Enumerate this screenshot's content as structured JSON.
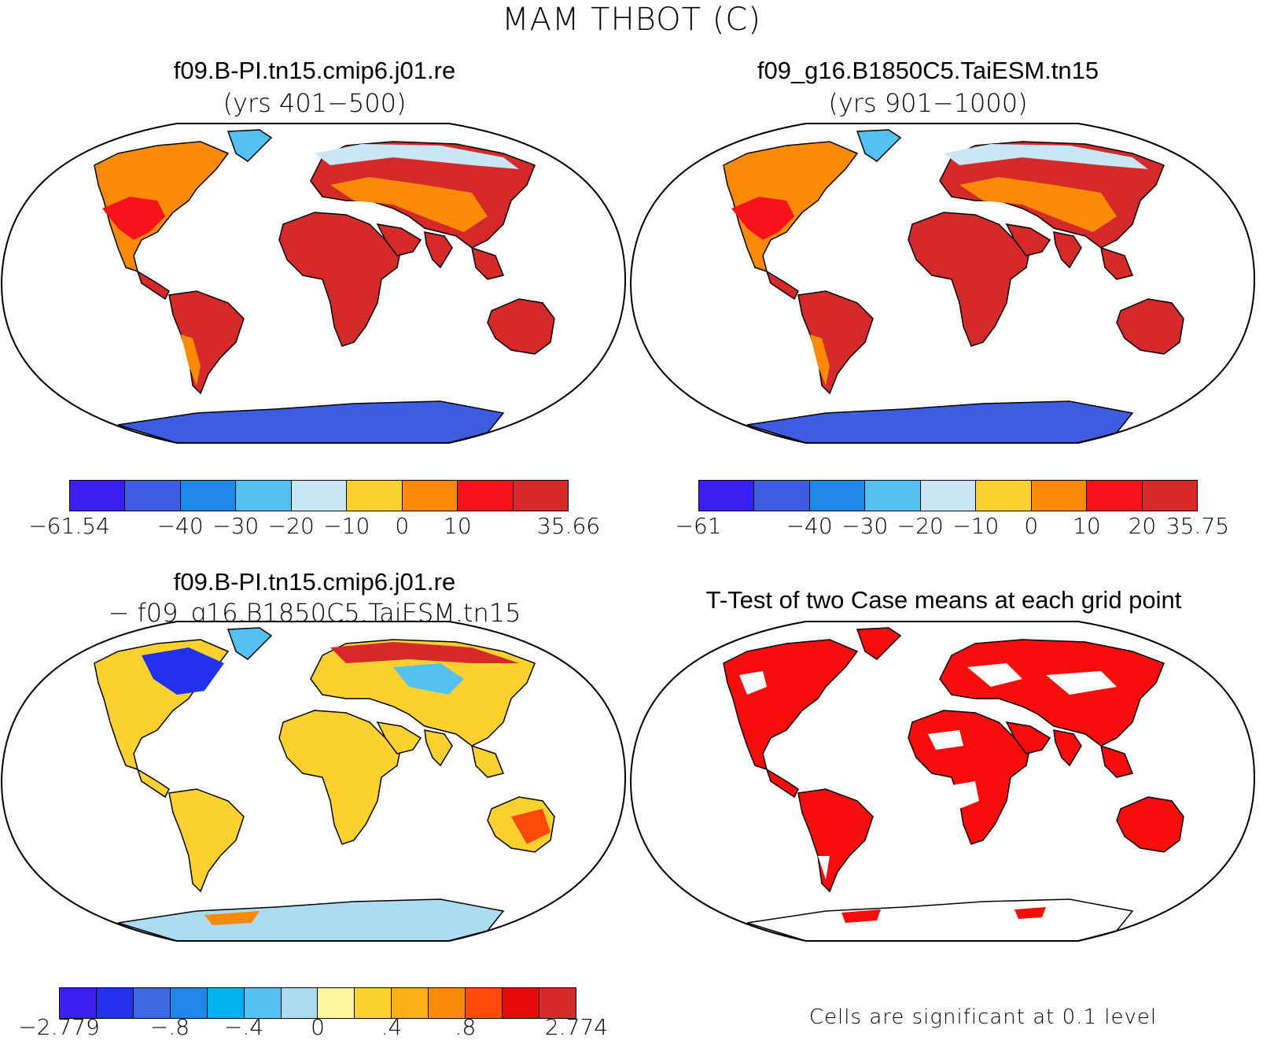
{
  "main_title": "MAM THBOT (C)",
  "panels": [
    {
      "id": "case1",
      "title": "f09.B-PI.tn15.cmip6.j01.re",
      "subtitle": "(yrs 401−500)",
      "colorbar": {
        "colors": [
          "#3b1ff2",
          "#3d5ce0",
          "#1e88e8",
          "#55c1f2",
          "#c8e6f6",
          "#fdd12f",
          "#fc8a06",
          "#f8121a",
          "#d42a2a"
        ],
        "tick_labels": [
          "−61.54",
          "−40",
          "−30",
          "−20",
          "−10",
          "0",
          "10",
          "35.66"
        ]
      }
    },
    {
      "id": "case2",
      "title": "f09_g16.B1850C5.TaiESM.tn15",
      "subtitle": "(yrs 901−1000)",
      "colorbar": {
        "colors": [
          "#3b1ff2",
          "#3d5ce0",
          "#1e88e8",
          "#55c1f2",
          "#c8e6f6",
          "#fdd12f",
          "#fc8a06",
          "#f8121a",
          "#d42a2a"
        ],
        "tick_labels": [
          "−61",
          "−40",
          "−30",
          "−20",
          "−10",
          "0",
          "10",
          "20",
          "35.75"
        ]
      }
    },
    {
      "id": "difference",
      "title": "f09.B-PI.tn15.cmip6.j01.re",
      "subtitle": "− f09_g16.B1850C5.TaiESM.tn15",
      "colorbar": {
        "colors": [
          "#3b1ff2",
          "#2232ec",
          "#3d6ae4",
          "#1e88e8",
          "#05b0f0",
          "#55c1f2",
          "#acdcf2",
          "#fdf6a0",
          "#fdd12f",
          "#fcb015",
          "#fc8a06",
          "#fc4a0a",
          "#e60a0a",
          "#d42a2a"
        ],
        "tick_labels": [
          "−2.779",
          "−.8",
          "−.4",
          "0",
          ".4",
          ".8",
          "2.774"
        ]
      }
    },
    {
      "id": "ttest",
      "title": "T-Test of two Case means at each grid point",
      "note": "Cells are significant at 0.1 level",
      "significant_color": "#f80d0d"
    }
  ]
}
